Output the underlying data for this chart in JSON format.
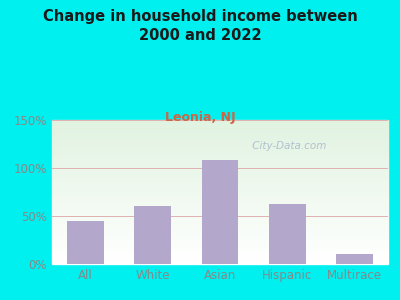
{
  "title": "Change in household income between\n2000 and 2022",
  "subtitle": "Leonia, NJ",
  "categories": [
    "All",
    "White",
    "Asian",
    "Hispanic",
    "Multirace"
  ],
  "values": [
    45,
    60,
    108,
    62,
    10
  ],
  "bar_color": "#b3a8cc",
  "bg_color": "#00EFEF",
  "title_color": "#1a1a1a",
  "subtitle_color": "#cc6644",
  "tick_color": "#888888",
  "grid_color": "#e0b0b0",
  "ylim": [
    0,
    150
  ],
  "yticks": [
    0,
    50,
    100,
    150
  ],
  "watermark": " City-Data.com",
  "watermark_color": "#aabbcc"
}
